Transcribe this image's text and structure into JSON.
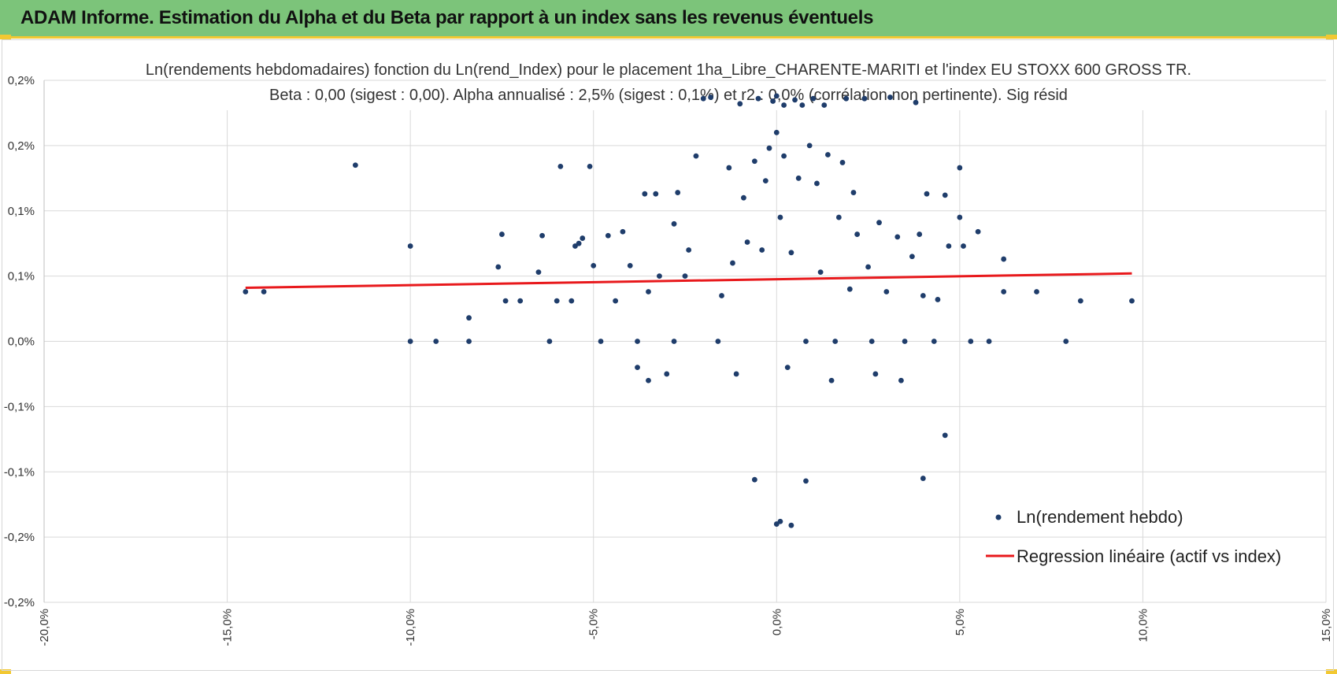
{
  "header": {
    "title": "ADAM Informe. Estimation du Alpha et du Beta par rapport à un index sans les revenus éventuels"
  },
  "colors": {
    "banner": "#7cc47a",
    "accent": "#f2c832",
    "points": "#1f3d6b",
    "regression": "#e8191c",
    "grid": "#d9d9d9"
  },
  "chart_data": {
    "type": "scatter",
    "title_line1": "Ln(rendements hebdomadaires) fonction du Ln(rend_Index) pour le placement 1ha_Libre_CHARENTE-MARITI et l'index EU STOXX 600 GROSS TR.",
    "title_line2": "Beta : 0,00 (sigest : 0,00). Alpha annualisé : 2,5% (sigest : 0,1%) et r2 : 0,0% (corrélation non pertinente). Sig résid",
    "xlim": [
      -20,
      15
    ],
    "ylim": [
      -0.2,
      0.2
    ],
    "x_ticks": [
      {
        "value": -20,
        "label": "-20,0%"
      },
      {
        "value": -15,
        "label": "-15,0%"
      },
      {
        "value": -10,
        "label": "-10,0%"
      },
      {
        "value": -5,
        "label": "-5,0%"
      },
      {
        "value": 0,
        "label": "0,0%"
      },
      {
        "value": 5,
        "label": "5,0%"
      },
      {
        "value": 10,
        "label": "10,0%"
      },
      {
        "value": 15,
        "label": "15,0%"
      }
    ],
    "y_ticks": [
      {
        "value": 0.2,
        "label": "0,2%"
      },
      {
        "value": 0.15,
        "label": "0,2%"
      },
      {
        "value": 0.1,
        "label": "0,1%"
      },
      {
        "value": 0.05,
        "label": "0,1%"
      },
      {
        "value": 0.0,
        "label": "0,0%"
      },
      {
        "value": -0.05,
        "label": "-0,1%"
      },
      {
        "value": -0.1,
        "label": "-0,1%"
      },
      {
        "value": -0.15,
        "label": "-0,2%"
      },
      {
        "value": -0.2,
        "label": "-0,2%"
      }
    ],
    "series": [
      {
        "name": "Ln(rendement hebdo)",
        "type": "scatter",
        "points": [
          [
            -14.5,
            0.038
          ],
          [
            -14.0,
            0.038
          ],
          [
            -11.5,
            0.135
          ],
          [
            -10.0,
            0.073
          ],
          [
            -10.0,
            0.0
          ],
          [
            -9.3,
            0.0
          ],
          [
            -8.4,
            0.018
          ],
          [
            -8.4,
            0.0
          ],
          [
            -7.5,
            0.082
          ],
          [
            -7.6,
            0.057
          ],
          [
            -7.4,
            0.031
          ],
          [
            -7.0,
            0.031
          ],
          [
            -6.5,
            0.053
          ],
          [
            -6.4,
            0.081
          ],
          [
            -6.2,
            0.0
          ],
          [
            -6.0,
            0.031
          ],
          [
            -5.9,
            0.134
          ],
          [
            -5.6,
            0.031
          ],
          [
            -5.5,
            0.073
          ],
          [
            -5.4,
            0.075
          ],
          [
            -5.3,
            0.079
          ],
          [
            -5.1,
            0.134
          ],
          [
            -5.0,
            0.058
          ],
          [
            -4.8,
            0.0
          ],
          [
            -4.6,
            0.081
          ],
          [
            -4.4,
            0.031
          ],
          [
            -4.2,
            0.084
          ],
          [
            -4.0,
            0.058
          ],
          [
            -3.8,
            0.0
          ],
          [
            -3.8,
            -0.02
          ],
          [
            -3.6,
            0.113
          ],
          [
            -3.5,
            0.038
          ],
          [
            -3.5,
            -0.03
          ],
          [
            -3.3,
            0.113
          ],
          [
            -3.2,
            0.05
          ],
          [
            -3.0,
            -0.025
          ],
          [
            -2.8,
            0.09
          ],
          [
            -2.8,
            0.0
          ],
          [
            -2.7,
            0.114
          ],
          [
            -2.5,
            0.05
          ],
          [
            -2.4,
            0.07
          ],
          [
            -2.2,
            0.142
          ],
          [
            -2.0,
            0.186
          ],
          [
            -1.8,
            0.187
          ],
          [
            -1.6,
            0.0
          ],
          [
            -1.5,
            0.035
          ],
          [
            -1.3,
            0.133
          ],
          [
            -1.2,
            0.06
          ],
          [
            -1.1,
            -0.025
          ],
          [
            -1.0,
            0.182
          ],
          [
            -0.9,
            0.11
          ],
          [
            -0.8,
            0.076
          ],
          [
            -0.6,
            0.138
          ],
          [
            -0.6,
            -0.106
          ],
          [
            -0.5,
            0.186
          ],
          [
            -0.4,
            0.07
          ],
          [
            -0.3,
            0.123
          ],
          [
            -0.2,
            0.148
          ],
          [
            -0.1,
            0.184
          ],
          [
            0.0,
            0.188
          ],
          [
            0.0,
            0.16
          ],
          [
            0.0,
            -0.14
          ],
          [
            0.1,
            0.095
          ],
          [
            0.1,
            -0.138
          ],
          [
            0.2,
            0.181
          ],
          [
            0.2,
            0.142
          ],
          [
            0.3,
            -0.02
          ],
          [
            0.4,
            0.068
          ],
          [
            0.4,
            -0.141
          ],
          [
            0.5,
            0.185
          ],
          [
            0.6,
            0.125
          ],
          [
            0.7,
            0.181
          ],
          [
            0.8,
            0.0
          ],
          [
            0.8,
            -0.107
          ],
          [
            0.9,
            0.15
          ],
          [
            1.0,
            0.186
          ],
          [
            1.1,
            0.121
          ],
          [
            1.2,
            0.053
          ],
          [
            1.3,
            0.181
          ],
          [
            1.4,
            0.143
          ],
          [
            1.5,
            -0.03
          ],
          [
            1.6,
            0.0
          ],
          [
            1.7,
            0.095
          ],
          [
            1.8,
            0.137
          ],
          [
            1.9,
            0.186
          ],
          [
            2.0,
            0.04
          ],
          [
            2.1,
            0.114
          ],
          [
            2.2,
            0.082
          ],
          [
            2.4,
            0.186
          ],
          [
            2.5,
            0.057
          ],
          [
            2.6,
            0.0
          ],
          [
            2.7,
            -0.025
          ],
          [
            2.8,
            0.091
          ],
          [
            3.0,
            0.038
          ],
          [
            3.1,
            0.187
          ],
          [
            3.3,
            0.08
          ],
          [
            3.4,
            -0.03
          ],
          [
            3.5,
            0.0
          ],
          [
            3.7,
            0.065
          ],
          [
            3.8,
            0.183
          ],
          [
            3.9,
            0.082
          ],
          [
            4.0,
            0.035
          ],
          [
            4.0,
            -0.105
          ],
          [
            4.1,
            0.113
          ],
          [
            4.3,
            0.0
          ],
          [
            4.4,
            0.032
          ],
          [
            4.6,
            0.112
          ],
          [
            4.6,
            -0.072
          ],
          [
            4.7,
            0.073
          ],
          [
            5.0,
            0.133
          ],
          [
            5.0,
            0.095
          ],
          [
            5.1,
            0.073
          ],
          [
            5.3,
            0.0
          ],
          [
            5.5,
            0.084
          ],
          [
            5.8,
            0.0
          ],
          [
            6.2,
            0.063
          ],
          [
            6.2,
            0.038
          ],
          [
            7.1,
            0.038
          ],
          [
            7.9,
            0.0
          ],
          [
            8.3,
            0.031
          ],
          [
            9.7,
            0.031
          ]
        ]
      },
      {
        "name": "Regression linéaire (actif vs index)",
        "type": "line",
        "x": [
          -14.5,
          9.7
        ],
        "y": [
          0.041,
          0.052
        ]
      }
    ],
    "legend_position": "bottom-right",
    "xlabel": "",
    "ylabel": ""
  }
}
